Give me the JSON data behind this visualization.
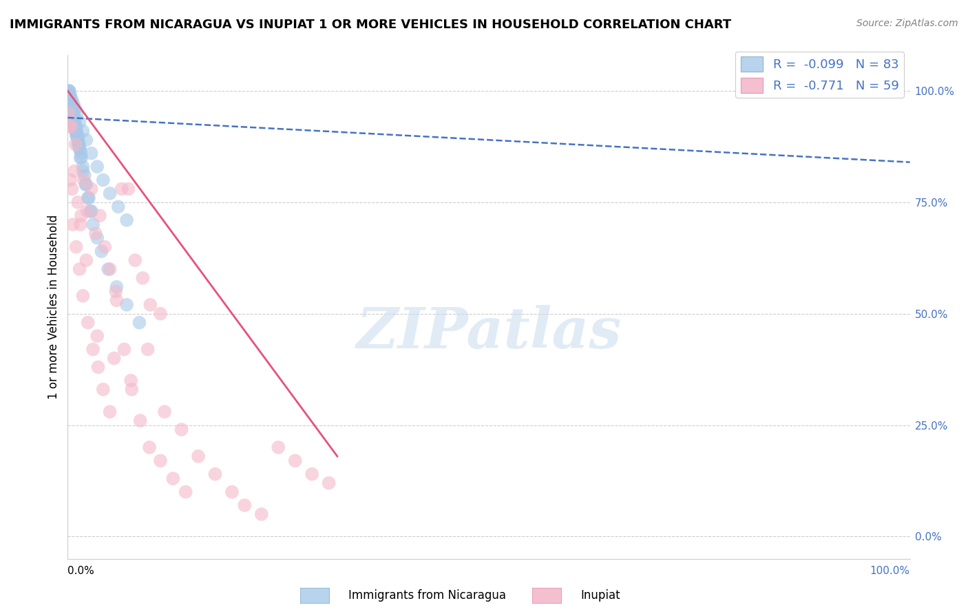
{
  "title": "IMMIGRANTS FROM NICARAGUA VS INUPIAT 1 OR MORE VEHICLES IN HOUSEHOLD CORRELATION CHART",
  "source": "Source: ZipAtlas.com",
  "ylabel": "1 or more Vehicles in Household",
  "watermark": "ZIPatlas",
  "blue_color": "#A8C8E8",
  "pink_color": "#F4B8C8",
  "blue_line_color": "#4472C4",
  "pink_line_color": "#E8507A",
  "blue_scatter_x": [
    0.2,
    0.3,
    0.5,
    0.7,
    0.9,
    1.1,
    1.4,
    1.8,
    2.2,
    2.8,
    3.5,
    4.2,
    5.0,
    6.0,
    7.0,
    0.1,
    0.2,
    0.3,
    0.4,
    0.5,
    0.6,
    0.7,
    0.8,
    0.9,
    1.0,
    1.1,
    1.2,
    1.3,
    1.4,
    1.6,
    1.8,
    2.0,
    2.2,
    2.5,
    2.8,
    0.15,
    0.25,
    0.35,
    0.45,
    0.55,
    0.65,
    0.75,
    0.85,
    0.95,
    1.05,
    1.15,
    1.25,
    1.35,
    1.45,
    1.55,
    0.1,
    0.2,
    0.3,
    0.4,
    0.5,
    0.6,
    0.7,
    0.8,
    0.9,
    1.0,
    1.2,
    1.5,
    1.8,
    2.1,
    2.4,
    2.7,
    3.0,
    3.5,
    4.0,
    4.8,
    5.8,
    7.0,
    8.5
  ],
  "blue_scatter_y": [
    100,
    99,
    98,
    97,
    96,
    95,
    93,
    91,
    89,
    86,
    83,
    80,
    77,
    74,
    71,
    100,
    99,
    98,
    97,
    96,
    95,
    94,
    93,
    92,
    91,
    90,
    89,
    88,
    87,
    85,
    83,
    81,
    79,
    76,
    73,
    100,
    99,
    98,
    97,
    96,
    95,
    94,
    93,
    92,
    91,
    90,
    89,
    88,
    87,
    86,
    99,
    98,
    97,
    96,
    95,
    94,
    93,
    92,
    91,
    90,
    88,
    85,
    82,
    79,
    76,
    73,
    70,
    67,
    64,
    60,
    56,
    52,
    48
  ],
  "pink_scatter_x": [
    0.1,
    0.3,
    0.5,
    0.8,
    1.2,
    1.5,
    1.9,
    2.3,
    2.8,
    3.3,
    3.8,
    4.4,
    5.0,
    5.7,
    6.4,
    7.2,
    8.0,
    8.9,
    9.8,
    11.0,
    0.2,
    0.6,
    1.0,
    1.4,
    1.8,
    2.4,
    3.0,
    3.6,
    4.2,
    5.0,
    5.8,
    6.7,
    7.6,
    8.6,
    9.7,
    11.0,
    12.5,
    14.0,
    0.4,
    0.9,
    1.6,
    2.2,
    3.5,
    5.5,
    7.5,
    9.5,
    11.5,
    13.5,
    15.5,
    17.5,
    19.5,
    21.0,
    23.0,
    25.0,
    27.0,
    29.0,
    31.0
  ],
  "pink_scatter_y": [
    95,
    80,
    78,
    82,
    75,
    70,
    80,
    73,
    78,
    68,
    72,
    65,
    60,
    55,
    78,
    78,
    62,
    58,
    52,
    50,
    92,
    70,
    65,
    60,
    54,
    48,
    42,
    38,
    33,
    28,
    53,
    42,
    33,
    26,
    20,
    17,
    13,
    10,
    92,
    88,
    72,
    62,
    45,
    40,
    35,
    42,
    28,
    24,
    18,
    14,
    10,
    7,
    5,
    20,
    17,
    14,
    12
  ],
  "blue_line_x": [
    0,
    100
  ],
  "blue_line_y": [
    94,
    84
  ],
  "pink_line_x": [
    0,
    31
  ],
  "pink_line_y": [
    100,
    18
  ],
  "ytick_vals": [
    0,
    25,
    50,
    75,
    100
  ],
  "ytick_labels": [
    "0.0%",
    "25.0%",
    "50.0%",
    "75.0%",
    "100.0%"
  ],
  "xlim": [
    0,
    100
  ],
  "ylim": [
    -5,
    108
  ],
  "title_fontsize": 13,
  "source_fontsize": 10,
  "ylabel_fontsize": 12,
  "legend_fontsize": 13,
  "tick_fontsize": 11
}
